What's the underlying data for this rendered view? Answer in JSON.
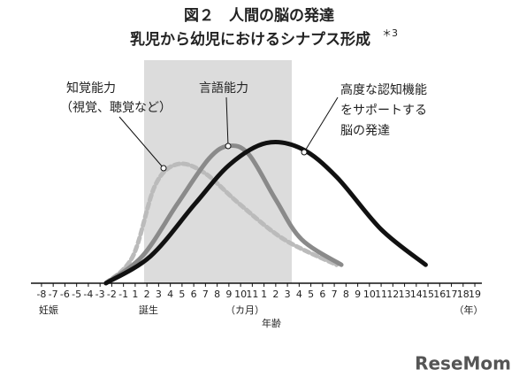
{
  "chart_data": {
    "type": "line",
    "title": "図２　人間の脳の発達",
    "subtitle": "乳児から幼児におけるシナプス形成",
    "subtitle_note": "＊3",
    "xlabel": "年齢",
    "axis_notes": [
      "妊娠",
      "誕生",
      "（カ月）",
      "（年）"
    ],
    "xlim": [
      -0.9,
      37.6
    ],
    "ylim": [
      0,
      100
    ],
    "xticks": [
      {
        "value": 0,
        "label": "-8"
      },
      {
        "value": 1,
        "label": "-7"
      },
      {
        "value": 2,
        "label": "-6"
      },
      {
        "value": 3,
        "label": "-5"
      },
      {
        "value": 4,
        "label": "-4"
      },
      {
        "value": 5,
        "label": "-3"
      },
      {
        "value": 6,
        "label": "-2"
      },
      {
        "value": 7,
        "label": "-1"
      },
      {
        "value": 8,
        "label": "1"
      },
      {
        "value": 9,
        "label": "2"
      },
      {
        "value": 10,
        "label": "3"
      },
      {
        "value": 11,
        "label": "4"
      },
      {
        "value": 12,
        "label": "5"
      },
      {
        "value": 13,
        "label": "6"
      },
      {
        "value": 14,
        "label": "7"
      },
      {
        "value": 15,
        "label": "8"
      },
      {
        "value": 16,
        "label": "9"
      },
      {
        "value": 17,
        "label": "10"
      },
      {
        "value": 18,
        "label": "11"
      },
      {
        "value": 19,
        "label": "1"
      },
      {
        "value": 20,
        "label": "2"
      },
      {
        "value": 21,
        "label": "3"
      },
      {
        "value": 22,
        "label": "4"
      },
      {
        "value": 23,
        "label": "5"
      },
      {
        "value": 24,
        "label": "6"
      },
      {
        "value": 25,
        "label": "7"
      },
      {
        "value": 26,
        "label": "8"
      },
      {
        "value": 27,
        "label": "9"
      },
      {
        "value": 28,
        "label": "10"
      },
      {
        "value": 29,
        "label": "11"
      },
      {
        "value": 30,
        "label": "12"
      },
      {
        "value": 31,
        "label": "13"
      },
      {
        "value": 32,
        "label": "14"
      },
      {
        "value": 33,
        "label": "15"
      },
      {
        "value": 34,
        "label": "16"
      },
      {
        "value": 35,
        "label": "17"
      },
      {
        "value": 36,
        "label": "18"
      },
      {
        "value": 37,
        "label": "19"
      }
    ],
    "series": [
      {
        "name": [
          "知覚能力",
          "（視覚、聴覚など）"
        ],
        "color": "#bbbbbb",
        "dashed": true,
        "x": [
          5.5,
          7.8,
          9.7,
          11.6,
          13.9,
          16.9,
          20.7,
          25.2
        ],
        "values": [
          0,
          19,
          69,
          84,
          78,
          56,
          31,
          13
        ]
      },
      {
        "name": [
          "言語能力"
        ],
        "color": "#8a8a8a",
        "dashed": false,
        "x": [
          5.5,
          8.6,
          11.6,
          14.3,
          16.0,
          17.7,
          20.0,
          22.2,
          25.6
        ],
        "values": [
          0,
          19,
          56,
          88,
          97,
          91,
          59,
          31,
          13
        ]
      },
      {
        "name": [
          "高度な認知機能",
          "をサポートする",
          "脳の発達"
        ],
        "color": "#111111",
        "dashed": false,
        "x": [
          5.5,
          9.3,
          13.1,
          16.1,
          19.2,
          22.2,
          25.2,
          29.0,
          32.8
        ],
        "values": [
          0,
          19,
          56,
          84,
          99,
          95,
          75,
          38,
          13
        ]
      }
    ],
    "watermark": "ReseMom"
  }
}
